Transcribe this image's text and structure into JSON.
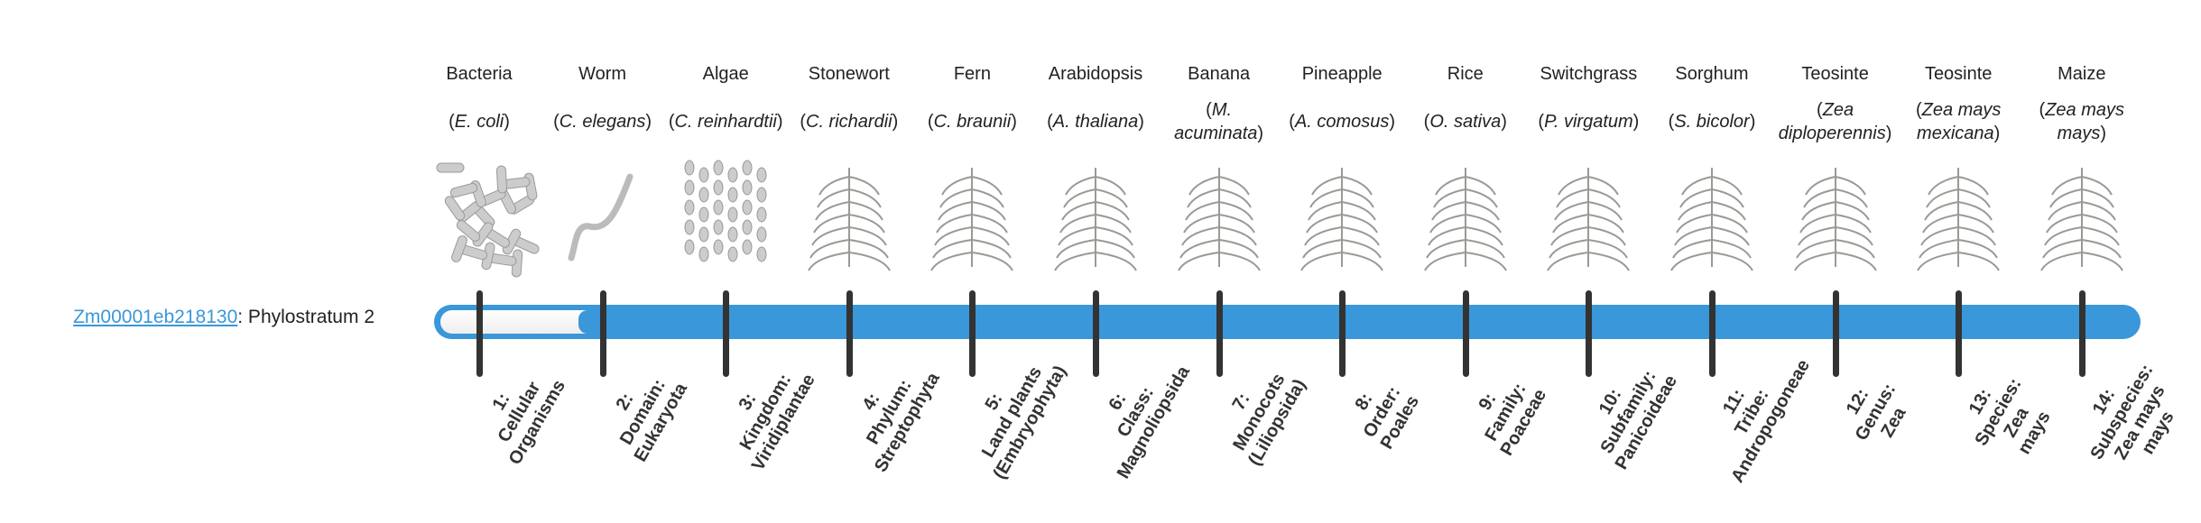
{
  "gene": {
    "id": "Zm00001eb218130",
    "suffix": ": Phylostratum 2"
  },
  "progress": {
    "current_stratum": 2,
    "total_strata": 14,
    "bar_color": "#3a97d9"
  },
  "organisms": [
    {
      "common": "Bacteria",
      "species": "E. coli",
      "icon": "bacteria-image"
    },
    {
      "common": "Worm",
      "species": "C. elegans",
      "icon": "worm-image"
    },
    {
      "common": "Algae",
      "species": "C. reinhardtii",
      "icon": "algae-image"
    },
    {
      "common": "Stonewort",
      "species": "C. richardii",
      "icon": "stonewort-image"
    },
    {
      "common": "Fern",
      "species": "C. braunii",
      "icon": "fern-image"
    },
    {
      "common": "Arabidopsis",
      "species": "A. thaliana",
      "icon": "arabidopsis-image"
    },
    {
      "common": "Banana",
      "species": "M. acuminata",
      "icon": "banana-image"
    },
    {
      "common": "Pineapple",
      "species": "A. comosus",
      "icon": "pineapple-image"
    },
    {
      "common": "Rice",
      "species": "O. sativa",
      "icon": "rice-image"
    },
    {
      "common": "Switchgrass",
      "species": "P. virgatum",
      "icon": "switchgrass-image"
    },
    {
      "common": "Sorghum",
      "species": "S. bicolor",
      "icon": "sorghum-image"
    },
    {
      "common": "Teosinte",
      "species": "Zea diploperennis",
      "icon": "teosinte-image"
    },
    {
      "common": "Teosinte",
      "species": "Zea mays mexicana",
      "icon": "teosinte-image"
    },
    {
      "common": "Maize",
      "species": "Zea mays mays",
      "icon": "maize-image"
    }
  ],
  "strata": [
    "1:\nCellular\nOrganisms",
    "2:\nDomain:\nEukaryota",
    "3:\nKingdom:\nViridiplantae",
    "4:\nPhylum:\nStreptophyta",
    "5:\nLand plants\n(Embryophyta)",
    "6:\nClass:\nMagnoliopsida",
    "7:\nMonocots\n(Liliopsida)",
    "8:\nOrder:\nPoales",
    "9:\nFamily:\nPoaceae",
    "10:\nSubfamily:\nPanicoideae",
    "11:\nTribe:\nAndropogoneae",
    "12:\nGenus:\nZea",
    "13:\nSpecies:\nZea\nmays",
    "14:\nSubspecies:\nZea mays\nmays"
  ]
}
